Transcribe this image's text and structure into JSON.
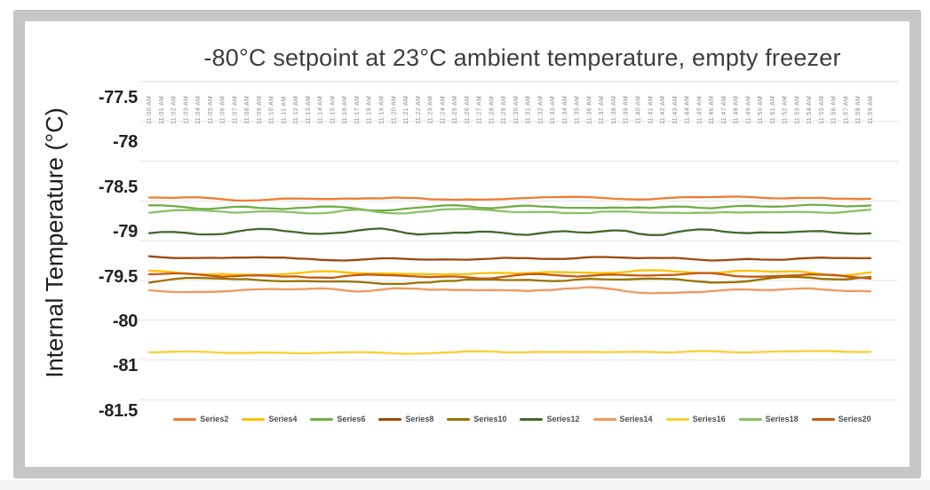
{
  "palette": {
    "frame_border": "#c6c6c6",
    "footer_strip": "#f4f4f4",
    "gridline": "#e4e4e4",
    "plot_top_border": "#dadada",
    "title_color": "#3d3d3d",
    "axis_label_color": "#222222",
    "x_tick_color": "#8a8a8a",
    "legend_text_color": "#4d4d4d"
  },
  "chart_data": {
    "type": "line",
    "title": "-80°C setpoint at 23°C ambient temperature, empty freezer",
    "xlabel": "",
    "ylabel": "Internal Temperature (°C)",
    "grid": true,
    "legend_position": "bottom",
    "x_tick_position": "top",
    "y_tick_labels": [
      "-77.5",
      "-78",
      "-78.5",
      "-79",
      "-79.5",
      "-80",
      "-81",
      "-81.5"
    ],
    "y_tick_values": [
      -77.5,
      -78,
      -78.5,
      -79,
      -79.5,
      -80,
      -81,
      -81.5
    ],
    "x": [
      "11:00 AM",
      "11:01 AM",
      "11:02 AM",
      "11:03 AM",
      "11:04 AM",
      "11:05 AM",
      "11:06 AM",
      "11:07 AM",
      "11:08 AM",
      "11:09 AM",
      "11:10 AM",
      "11:11 AM",
      "11:12 AM",
      "11:13 AM",
      "11:14 AM",
      "11:15 AM",
      "11:16 AM",
      "11:17 AM",
      "11:18 AM",
      "11:19 AM",
      "11:20 AM",
      "11:21 AM",
      "11:22 AM",
      "11:23 AM",
      "11:24 AM",
      "11:25 AM",
      "11:26 AM",
      "11:27 AM",
      "11:28 AM",
      "11:29 AM",
      "11:30 AM",
      "11:31 AM",
      "11:32 AM",
      "11:33 AM",
      "11:34 AM",
      "11:35 AM",
      "11:36 AM",
      "11:37 AM",
      "11:38 AM",
      "11:39 AM",
      "11:40 AM",
      "11:41 AM",
      "11:42 AM",
      "11:43 AM",
      "11:44 AM",
      "11:45 AM",
      "11:46 AM",
      "11:47 AM",
      "11:48 AM",
      "11:49 AM",
      "11:50 AM",
      "11:51 AM",
      "11:52 AM",
      "11:53 AM",
      "11:54 AM",
      "11:55 AM",
      "11:56 AM",
      "11:57 AM",
      "11:58 AM",
      "11:59 AM"
    ],
    "series_note": "Each series is essentially flat over 11:00-11:59 AM: value = mean ± noise_amplitude (°C, read off printed axis labels)",
    "series": [
      {
        "name": "Series2",
        "color": "#ED7D31",
        "mean": -78.62,
        "noise_amplitude": 0.02
      },
      {
        "name": "Series4",
        "color": "#FFC000",
        "mean": -79.44,
        "noise_amplitude": 0.025
      },
      {
        "name": "Series6",
        "color": "#70AD47",
        "mean": -78.72,
        "noise_amplitude": 0.025
      },
      {
        "name": "Series8",
        "color": "#9E480E",
        "mean": -79.28,
        "noise_amplitude": 0.02
      },
      {
        "name": "Series10",
        "color": "#997300",
        "mean": -79.53,
        "noise_amplitude": 0.03
      },
      {
        "name": "Series12",
        "color": "#43682B",
        "mean": -79.0,
        "noise_amplitude": 0.035
      },
      {
        "name": "Series14",
        "color": "#F1975A",
        "mean": -79.64,
        "noise_amplitude": 0.025
      },
      {
        "name": "Series16",
        "color": "#FFCD33",
        "mean": -80.67,
        "noise_amplitude": 0.025
      },
      {
        "name": "Series18",
        "color": "#8CC168",
        "mean": -78.76,
        "noise_amplitude": 0.03
      },
      {
        "name": "Series20",
        "color": "#C55A11",
        "mean": -79.49,
        "noise_amplitude": 0.03
      }
    ]
  }
}
